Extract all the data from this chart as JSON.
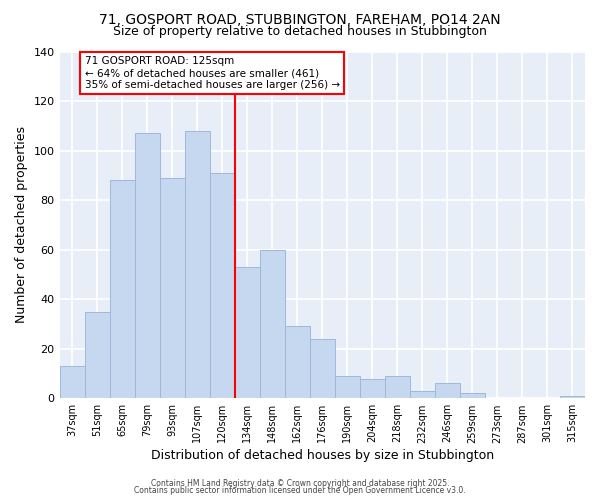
{
  "title": "71, GOSPORT ROAD, STUBBINGTON, FAREHAM, PO14 2AN",
  "subtitle": "Size of property relative to detached houses in Stubbington",
  "xlabel": "Distribution of detached houses by size in Stubbington",
  "ylabel": "Number of detached properties",
  "bar_labels": [
    "37sqm",
    "51sqm",
    "65sqm",
    "79sqm",
    "93sqm",
    "107sqm",
    "120sqm",
    "134sqm",
    "148sqm",
    "162sqm",
    "176sqm",
    "190sqm",
    "204sqm",
    "218sqm",
    "232sqm",
    "246sqm",
    "259sqm",
    "273sqm",
    "287sqm",
    "301sqm",
    "315sqm"
  ],
  "bar_values": [
    13,
    35,
    88,
    107,
    89,
    108,
    91,
    53,
    60,
    29,
    24,
    9,
    8,
    9,
    3,
    6,
    2,
    0,
    0,
    0,
    1
  ],
  "bar_color": "#c5d8f0",
  "bar_edge_color": "#a0b8d8",
  "property_line_x_label": "120sqm",
  "property_line_color": "red",
  "annotation_title": "71 GOSPORT ROAD: 125sqm",
  "annotation_line1": "← 64% of detached houses are smaller (461)",
  "annotation_line2": "35% of semi-detached houses are larger (256) →",
  "annotation_box_color": "white",
  "annotation_box_edge": "red",
  "ylim": [
    0,
    140
  ],
  "yticks": [
    0,
    20,
    40,
    60,
    80,
    100,
    120,
    140
  ],
  "footer1": "Contains HM Land Registry data © Crown copyright and database right 2025.",
  "footer2": "Contains public sector information licensed under the Open Government Licence v3.0.",
  "bg_color": "#ffffff",
  "plot_bg_color": "#e8eef8",
  "grid_color": "#ffffff",
  "title_fontsize": 10,
  "subtitle_fontsize": 9
}
